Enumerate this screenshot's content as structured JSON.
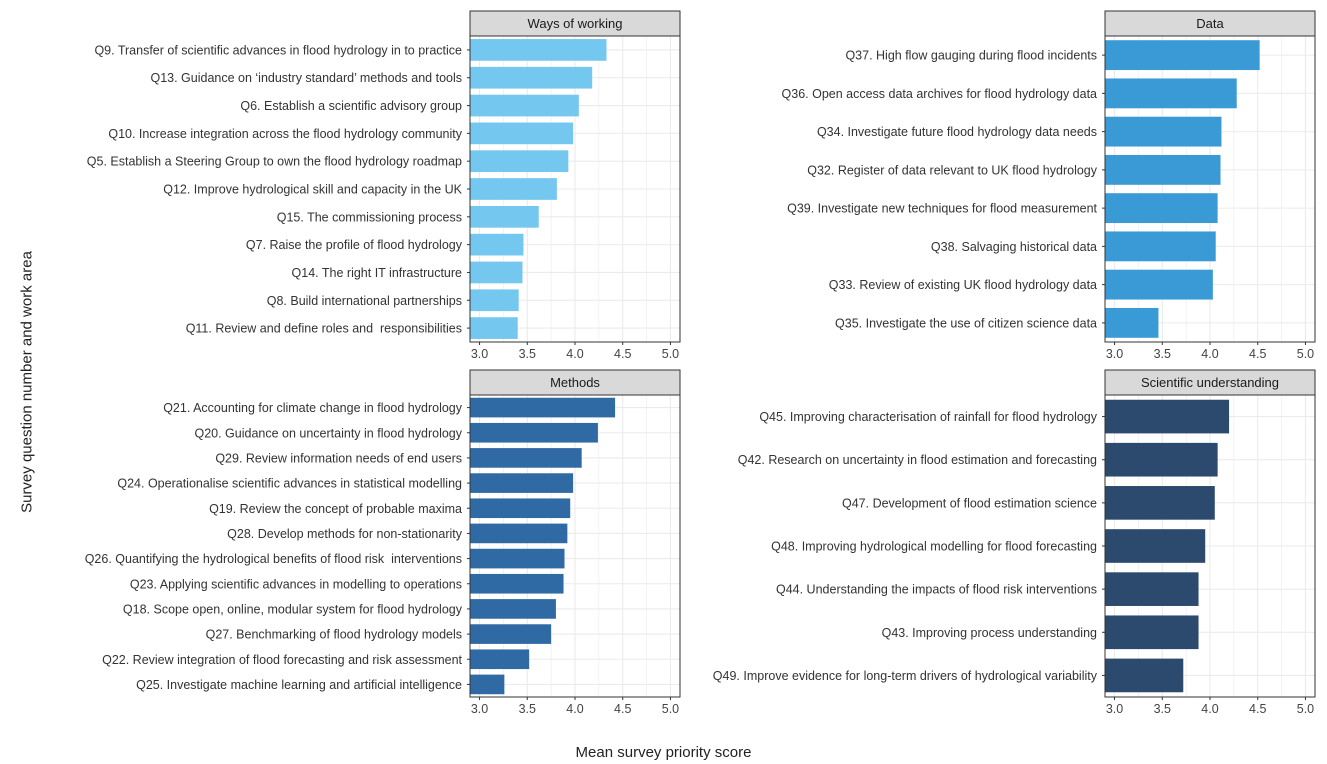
{
  "ylabel": "Survey question number and work area",
  "xlabel": "Mean survey priority score",
  "colors": {
    "Ways of working": "#74c7ee",
    "Data": "#3a9ad6",
    "Methods": "#2f6aa5",
    "Scientific understanding": "#2b4a6e",
    "strip_bg": "#d9d9d9",
    "grid": "#ebebeb"
  },
  "chart_data": [
    {
      "type": "bar",
      "orientation": "horizontal",
      "title": "Ways of working",
      "xlim": [
        2.9,
        5.1
      ],
      "x_ticks": [
        3.0,
        3.5,
        4.0,
        4.5,
        5.0
      ],
      "x_tick_labels": [
        "3.0",
        "3.5",
        "4.0",
        "4.5",
        "5.0"
      ],
      "categories": [
        "Q9. Transfer of scientific advances in flood hydrology in to practice",
        "Q13. Guidance on ‘industry standard’ methods and tools",
        "Q6. Establish a scientific advisory group",
        "Q10. Increase integration across the flood hydrology community",
        "Q5. Establish a Steering Group to own the flood hydrology roadmap",
        "Q12. Improve hydrological skill and capacity in the UK",
        "Q15. The commissioning process",
        "Q7. Raise the profile of flood hydrology",
        "Q14. The right IT infrastructure",
        "Q8. Build international partnerships",
        "Q11. Review and define roles and  responsibilities"
      ],
      "values": [
        4.33,
        4.18,
        4.04,
        3.98,
        3.93,
        3.81,
        3.62,
        3.46,
        3.45,
        3.41,
        3.4
      ]
    },
    {
      "type": "bar",
      "orientation": "horizontal",
      "title": "Data",
      "xlim": [
        2.9,
        5.1
      ],
      "x_ticks": [
        3.0,
        3.5,
        4.0,
        4.5,
        5.0
      ],
      "x_tick_labels": [
        "3.0",
        "3.5",
        "4.0",
        "4.5",
        "5.0"
      ],
      "categories": [
        "Q37. High flow gauging during flood incidents",
        "Q36. Open access data archives for flood hydrology data",
        "Q34. Investigate future flood hydrology data needs",
        "Q32. Register of data relevant to UK flood hydrology",
        "Q39. Investigate new techniques for flood measurement",
        "Q38. Salvaging historical data",
        "Q33. Review of existing UK flood hydrology data",
        "Q35. Investigate the use of citizen science data"
      ],
      "values": [
        4.52,
        4.28,
        4.12,
        4.11,
        4.08,
        4.06,
        4.03,
        3.46
      ]
    },
    {
      "type": "bar",
      "orientation": "horizontal",
      "title": "Methods",
      "xlim": [
        2.9,
        5.1
      ],
      "x_ticks": [
        3.0,
        3.5,
        4.0,
        4.5,
        5.0
      ],
      "x_tick_labels": [
        "3.0",
        "3.5",
        "4.0",
        "4.5",
        "5.0"
      ],
      "categories": [
        "Q21. Accounting for climate change in flood hydrology",
        "Q20. Guidance on uncertainty in flood hydrology",
        "Q29. Review information needs of end users",
        "Q24. Operationalise scientific advances in statistical modelling",
        "Q19. Review the concept of probable maxima",
        "Q28. Develop methods for non-stationarity",
        "Q26. Quantifying the hydrological benefits of flood risk  interventions",
        "Q23. Applying scientific advances in modelling to operations",
        "Q18. Scope open, online, modular system for flood hydrology",
        "Q27. Benchmarking of flood hydrology models",
        "Q22. Review integration of flood forecasting and risk assessment",
        "Q25. Investigate machine learning and artificial intelligence"
      ],
      "values": [
        4.42,
        4.24,
        4.07,
        3.98,
        3.95,
        3.92,
        3.89,
        3.88,
        3.8,
        3.75,
        3.52,
        3.26
      ]
    },
    {
      "type": "bar",
      "orientation": "horizontal",
      "title": "Scientific understanding",
      "xlim": [
        2.9,
        5.1
      ],
      "x_ticks": [
        3.0,
        3.5,
        4.0,
        4.5,
        5.0
      ],
      "x_tick_labels": [
        "3.0",
        "3.5",
        "4.0",
        "4.5",
        "5.0"
      ],
      "categories": [
        "Q45. Improving characterisation of rainfall for flood hydrology",
        "Q42. Research on uncertainty in flood estimation and forecasting",
        "Q47. Development of flood estimation science",
        "Q48. Improving hydrological modelling for flood forecasting",
        "Q44. Understanding the impacts of flood risk interventions",
        "Q43. Improving process understanding",
        "Q49. Improve evidence for long-term drivers of hydrological variability"
      ],
      "values": [
        4.2,
        4.08,
        4.05,
        3.95,
        3.88,
        3.88,
        3.72
      ]
    }
  ]
}
